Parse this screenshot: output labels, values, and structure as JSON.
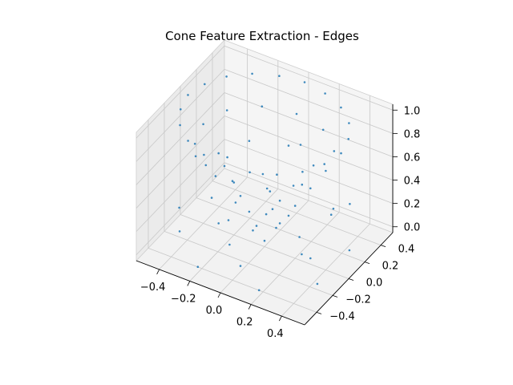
{
  "chart_data": {
    "type": "scatter",
    "projection": "3d",
    "title": "Cone Feature Extraction - Edges",
    "xlabel": "",
    "ylabel": "",
    "zlabel": "",
    "xlim": [
      -0.55,
      0.55
    ],
    "ylim": [
      -0.55,
      0.55
    ],
    "zlim": [
      -0.05,
      1.05
    ],
    "grid": true,
    "marker_color": "#1f77b4",
    "pane_color": "#f2f2f2",
    "x_ticks": [
      -0.4,
      -0.2,
      0.0,
      0.2,
      0.4
    ],
    "x_tick_labels": [
      "−0.4",
      "−0.2",
      "0.0",
      "0.2",
      "0.4"
    ],
    "y_ticks": [
      -0.4,
      -0.2,
      0.0,
      0.2,
      0.4
    ],
    "y_tick_labels": [
      "−0.4",
      "−0.2",
      "0.0",
      "0.2",
      "0.4"
    ],
    "z_ticks": [
      0.0,
      0.2,
      0.4,
      0.6,
      0.8,
      1.0
    ],
    "z_tick_labels": [
      "0.0",
      "0.2",
      "0.4",
      "0.6",
      "0.8",
      "1.0"
    ],
    "points": [
      [
        0.5,
        0.0,
        1.0
      ],
      [
        0.47,
        0.15,
        1.0
      ],
      [
        0.4,
        0.29,
        1.0
      ],
      [
        0.29,
        0.4,
        1.0
      ],
      [
        0.15,
        0.47,
        1.0
      ],
      [
        0.0,
        0.5,
        1.0
      ],
      [
        -0.15,
        0.47,
        1.0
      ],
      [
        -0.29,
        0.4,
        1.0
      ],
      [
        -0.4,
        0.29,
        1.0
      ],
      [
        -0.47,
        0.15,
        1.0
      ],
      [
        -0.5,
        0.0,
        1.0
      ],
      [
        -0.47,
        -0.15,
        1.0
      ],
      [
        -0.4,
        -0.29,
        1.0
      ],
      [
        -0.29,
        -0.4,
        1.0
      ],
      [
        -0.15,
        -0.47,
        1.0
      ],
      [
        0.0,
        -0.5,
        1.0
      ],
      [
        0.15,
        -0.47,
        1.0
      ],
      [
        0.29,
        -0.4,
        1.0
      ],
      [
        0.4,
        -0.29,
        1.0
      ],
      [
        0.47,
        -0.15,
        1.0
      ],
      [
        0.4,
        0.0,
        0.8
      ],
      [
        0.35,
        0.2,
        0.8
      ],
      [
        0.2,
        0.35,
        0.8
      ],
      [
        0.0,
        0.4,
        0.8
      ],
      [
        -0.2,
        0.35,
        0.8
      ],
      [
        -0.35,
        0.2,
        0.8
      ],
      [
        -0.4,
        0.0,
        0.8
      ],
      [
        -0.35,
        -0.2,
        0.8
      ],
      [
        -0.2,
        -0.35,
        0.8
      ],
      [
        0.0,
        -0.4,
        0.8
      ],
      [
        0.2,
        -0.35,
        0.8
      ],
      [
        0.35,
        -0.2,
        0.8
      ],
      [
        0.3,
        0.0,
        0.6
      ],
      [
        0.21,
        0.21,
        0.6
      ],
      [
        0.0,
        0.3,
        0.6
      ],
      [
        -0.21,
        0.21,
        0.6
      ],
      [
        -0.3,
        0.0,
        0.6
      ],
      [
        -0.21,
        -0.21,
        0.6
      ],
      [
        0.0,
        -0.3,
        0.6
      ],
      [
        0.21,
        -0.21,
        0.6
      ],
      [
        0.45,
        0.0,
        0.5
      ],
      [
        0.0,
        0.45,
        0.5
      ],
      [
        -0.45,
        0.0,
        0.5
      ],
      [
        0.0,
        -0.45,
        0.5
      ],
      [
        0.2,
        0.0,
        0.4
      ],
      [
        0.1,
        0.17,
        0.4
      ],
      [
        -0.1,
        0.17,
        0.4
      ],
      [
        -0.2,
        0.0,
        0.4
      ],
      [
        -0.1,
        -0.17,
        0.4
      ],
      [
        0.1,
        -0.17,
        0.4
      ],
      [
        0.4,
        0.3,
        0.3
      ],
      [
        -0.4,
        0.3,
        0.3
      ],
      [
        0.4,
        -0.3,
        0.3
      ],
      [
        -0.4,
        -0.3,
        0.3
      ],
      [
        0.1,
        0.0,
        0.2
      ],
      [
        0.0,
        0.1,
        0.2
      ],
      [
        -0.1,
        0.0,
        0.2
      ],
      [
        0.0,
        -0.1,
        0.2
      ],
      [
        0.05,
        0.05,
        0.1
      ],
      [
        -0.05,
        -0.05,
        0.1
      ],
      [
        0.0,
        0.0,
        0.0
      ],
      [
        0.45,
        0.2,
        0.0
      ],
      [
        0.2,
        0.45,
        0.0
      ],
      [
        -0.2,
        0.45,
        0.0
      ],
      [
        -0.45,
        0.2,
        0.0
      ],
      [
        -0.45,
        -0.2,
        0.0
      ],
      [
        -0.2,
        -0.45,
        0.0
      ],
      [
        0.2,
        -0.45,
        0.0
      ],
      [
        0.45,
        -0.2,
        0.0
      ],
      [
        0.3,
        0.0,
        0.0
      ],
      [
        -0.3,
        0.0,
        0.0
      ],
      [
        0.0,
        0.3,
        0.0
      ],
      [
        0.0,
        -0.3,
        0.0
      ],
      [
        0.15,
        0.15,
        0.0
      ],
      [
        -0.15,
        -0.15,
        0.0
      ]
    ]
  }
}
